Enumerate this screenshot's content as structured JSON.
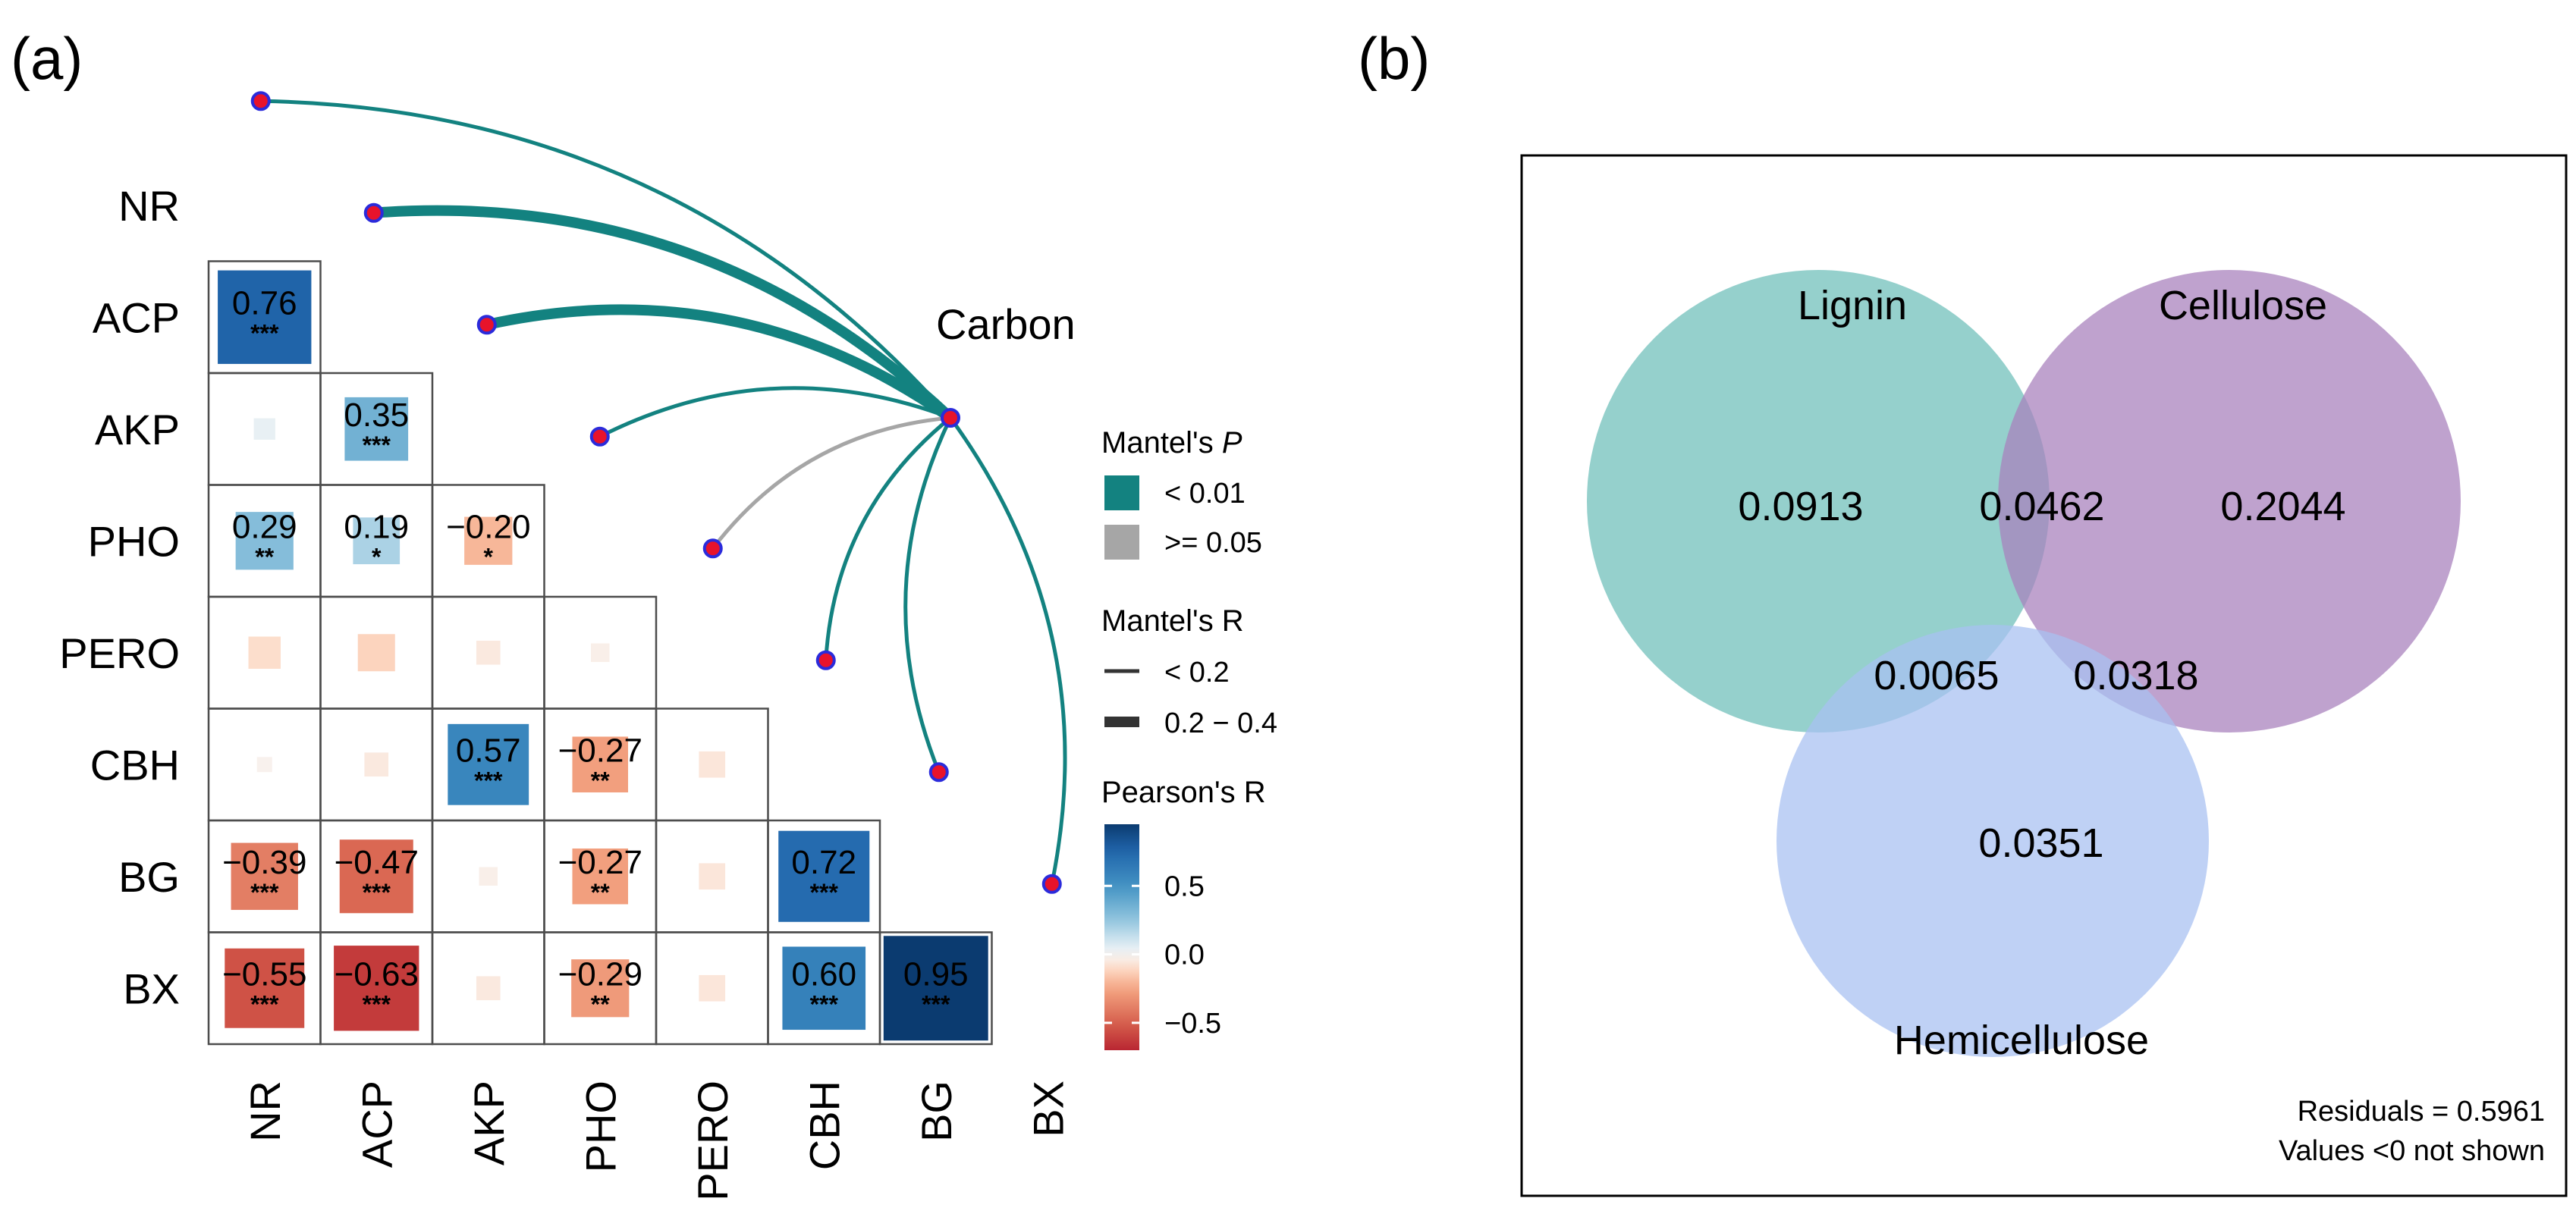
{
  "panels": {
    "a_label": "(a)",
    "b_label": "(b)"
  },
  "chart_data": [
    {
      "type": "heatmap",
      "subtype": "correlation-triangle-with-mantel-links",
      "variables": [
        "NR",
        "ACP",
        "AKP",
        "PHO",
        "PERO",
        "CBH",
        "BG",
        "BX"
      ],
      "cells": [
        {
          "row": "ACP",
          "col": "NR",
          "r": 0.76,
          "label": "0.76",
          "sig": "***"
        },
        {
          "row": "AKP",
          "col": "NR",
          "r": 0.04,
          "label": "",
          "sig": ""
        },
        {
          "row": "AKP",
          "col": "ACP",
          "r": 0.35,
          "label": "0.35",
          "sig": "***"
        },
        {
          "row": "PHO",
          "col": "NR",
          "r": 0.29,
          "label": "0.29",
          "sig": "**"
        },
        {
          "row": "PHO",
          "col": "ACP",
          "r": 0.19,
          "label": "0.19",
          "sig": "*"
        },
        {
          "row": "PHO",
          "col": "AKP",
          "r": -0.2,
          "label": "−0.20",
          "sig": "*"
        },
        {
          "row": "PERO",
          "col": "NR",
          "r": -0.09,
          "label": "",
          "sig": ""
        },
        {
          "row": "PERO",
          "col": "ACP",
          "r": -0.12,
          "label": "",
          "sig": ""
        },
        {
          "row": "PERO",
          "col": "AKP",
          "r": -0.05,
          "label": "",
          "sig": ""
        },
        {
          "row": "PERO",
          "col": "PHO",
          "r": -0.03,
          "label": "",
          "sig": ""
        },
        {
          "row": "CBH",
          "col": "NR",
          "r": -0.02,
          "label": "",
          "sig": ""
        },
        {
          "row": "CBH",
          "col": "ACP",
          "r": -0.05,
          "label": "",
          "sig": ""
        },
        {
          "row": "CBH",
          "col": "AKP",
          "r": 0.57,
          "label": "0.57",
          "sig": "***"
        },
        {
          "row": "CBH",
          "col": "PHO",
          "r": -0.27,
          "label": "−0.27",
          "sig": "**"
        },
        {
          "row": "CBH",
          "col": "PERO",
          "r": -0.06,
          "label": "",
          "sig": ""
        },
        {
          "row": "BG",
          "col": "NR",
          "r": -0.39,
          "label": "−0.39",
          "sig": "***"
        },
        {
          "row": "BG",
          "col": "ACP",
          "r": -0.47,
          "label": "−0.47",
          "sig": "***"
        },
        {
          "row": "BG",
          "col": "AKP",
          "r": -0.03,
          "label": "",
          "sig": ""
        },
        {
          "row": "BG",
          "col": "PHO",
          "r": -0.27,
          "label": "−0.27",
          "sig": "**"
        },
        {
          "row": "BG",
          "col": "PERO",
          "r": -0.06,
          "label": "",
          "sig": ""
        },
        {
          "row": "BG",
          "col": "CBH",
          "r": 0.72,
          "label": "0.72",
          "sig": "***"
        },
        {
          "row": "BX",
          "col": "NR",
          "r": -0.55,
          "label": "−0.55",
          "sig": "***"
        },
        {
          "row": "BX",
          "col": "ACP",
          "r": -0.63,
          "label": "−0.63",
          "sig": "***"
        },
        {
          "row": "BX",
          "col": "AKP",
          "r": -0.05,
          "label": "",
          "sig": ""
        },
        {
          "row": "BX",
          "col": "PHO",
          "r": -0.29,
          "label": "−0.29",
          "sig": "**"
        },
        {
          "row": "BX",
          "col": "PERO",
          "r": -0.06,
          "label": "",
          "sig": ""
        },
        {
          "row": "BX",
          "col": "CBH",
          "r": 0.6,
          "label": "0.60",
          "sig": "***"
        },
        {
          "row": "BX",
          "col": "BG",
          "r": 0.95,
          "label": "0.95",
          "sig": "***"
        }
      ],
      "mantel_source": "Carbon",
      "mantel_links": [
        {
          "target": "NR",
          "p_class": "< 0.01",
          "r_class": "< 0.2"
        },
        {
          "target": "ACP",
          "p_class": "< 0.01",
          "r_class": "0.2 − 0.4"
        },
        {
          "target": "AKP",
          "p_class": "< 0.01",
          "r_class": "0.2 − 0.4"
        },
        {
          "target": "PHO",
          "p_class": "< 0.01",
          "r_class": "< 0.2"
        },
        {
          "target": "PERO",
          "p_class": ">= 0.05",
          "r_class": "< 0.2"
        },
        {
          "target": "CBH",
          "p_class": "< 0.01",
          "r_class": "< 0.2"
        },
        {
          "target": "BG",
          "p_class": "< 0.01",
          "r_class": "< 0.2"
        },
        {
          "target": "BX",
          "p_class": "< 0.01",
          "r_class": "< 0.2"
        }
      ],
      "legend": {
        "mantel_p_title": "Mantel's ",
        "mantel_p_title_italic": "P",
        "mantel_p_items": [
          {
            "label": "< 0.01",
            "color": "#138280"
          },
          {
            "label": ">= 0.05",
            "color": "#a6a6a6"
          }
        ],
        "mantel_r_title": "Mantel's R",
        "mantel_r_items": [
          "< 0.2",
          "0.2 − 0.4"
        ],
        "pearson_title": "Pearson's R",
        "pearson_ticks": [
          {
            "value": 0.5,
            "label": "0.5"
          },
          {
            "value": 0.0,
            "label": "0.0"
          },
          {
            "value": -0.5,
            "label": "−0.5"
          }
        ],
        "pearson_range": [
          -0.7,
          0.95
        ]
      },
      "colors": {
        "positive_max": "#083061",
        "negative_max": "#66001f",
        "neutral": "#f7f7f7",
        "link_sig": "#138280",
        "link_ns": "#a6a6a6",
        "node_fill": "#e8132b",
        "node_stroke": "#2b2bdb"
      }
    },
    {
      "type": "venn",
      "sets": [
        {
          "name": "Lignin",
          "color": "#7ec6c1"
        },
        {
          "name": "Cellulose",
          "color": "#a882bd"
        },
        {
          "name": "Hemicellulose",
          "color": "#a9c1f2"
        }
      ],
      "regions": [
        {
          "sets": [
            "Lignin"
          ],
          "value": "0.0913"
        },
        {
          "sets": [
            "Cellulose"
          ],
          "value": "0.2044"
        },
        {
          "sets": [
            "Lignin",
            "Cellulose"
          ],
          "value": "0.0462"
        },
        {
          "sets": [
            "Lignin",
            "Hemicellulose"
          ],
          "value": "0.0065"
        },
        {
          "sets": [
            "Cellulose",
            "Hemicellulose"
          ],
          "value": "0.0318"
        },
        {
          "sets": [
            "Hemicellulose"
          ],
          "value": "0.0351"
        }
      ],
      "residuals_text": "Residuals = 0.5961",
      "note_text": "Values <0 not shown"
    }
  ]
}
